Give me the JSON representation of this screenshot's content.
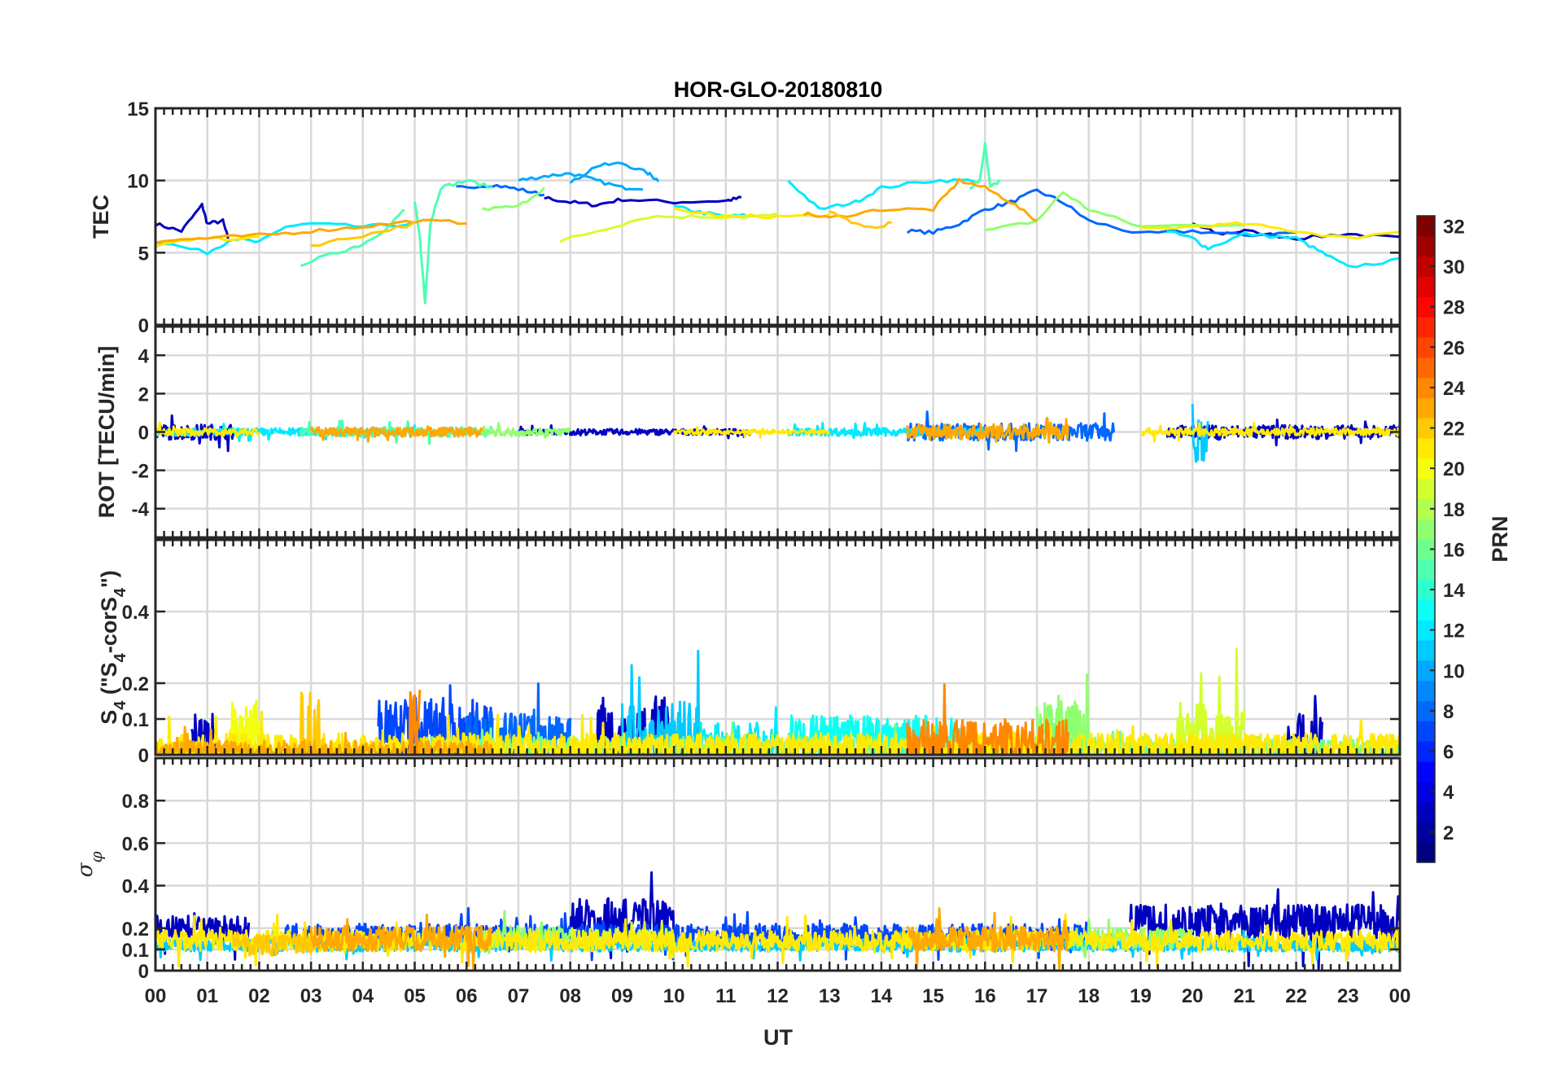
{
  "chart_data": {
    "type": "line",
    "title": "HOR-GLO-20180810",
    "xlabel": "UT",
    "xlim": [
      0,
      24
    ],
    "x_tick_labels": [
      "00",
      "01",
      "02",
      "03",
      "04",
      "05",
      "06",
      "07",
      "08",
      "09",
      "10",
      "11",
      "12",
      "13",
      "14",
      "15",
      "16",
      "17",
      "18",
      "19",
      "20",
      "21",
      "22",
      "23",
      "00"
    ],
    "colorbar": {
      "label": "PRN",
      "range": [
        1,
        32
      ],
      "tick_labels": [
        "2",
        "4",
        "6",
        "8",
        "10",
        "12",
        "14",
        "16",
        "18",
        "20",
        "22",
        "24",
        "26",
        "28",
        "30",
        "32"
      ],
      "colormap": "jet"
    },
    "panels": [
      {
        "ylabel": "TEC",
        "ylim": [
          0,
          15
        ],
        "yticks": [
          0,
          5,
          10,
          15
        ],
        "ytick_labels": [
          "0",
          "5",
          "10",
          "15"
        ],
        "series": [
          {
            "prn": 3,
            "x": [
              0,
              0.5,
              0.9,
              1.0,
              1.3,
              1.4
            ],
            "y": [
              7,
              6.5,
              8.3,
              7,
              7.2,
              6
            ]
          },
          {
            "prn": 3,
            "x": [
              7.5,
              8,
              8.5,
              9,
              10,
              11,
              11.3
            ],
            "y": [
              8.8,
              8.5,
              8.3,
              8.7,
              8.5,
              8.6,
              8.8
            ]
          },
          {
            "prn": 3,
            "x": [
              20,
              20.5,
              21,
              22,
              23,
              24
            ],
            "y": [
              7,
              6.3,
              6.5,
              6,
              6.3,
              6
            ]
          },
          {
            "prn": 8,
            "x": [
              5.8,
              6.5,
              7,
              7.5
            ],
            "y": [
              9.5,
              9.7,
              9.4,
              9
            ]
          },
          {
            "prn": 8,
            "x": [
              14.5,
              15,
              15.5,
              16,
              16.5,
              17,
              17.5,
              18,
              19,
              20,
              21,
              22
            ],
            "y": [
              6.5,
              6.4,
              7,
              8,
              8.5,
              9.3,
              8.5,
              7.2,
              6.3,
              6.5,
              6.2,
              6.4
            ]
          },
          {
            "prn": 10,
            "x": [
              7,
              7.5,
              8,
              8.5,
              9,
              9.4
            ],
            "y": [
              10,
              10.3,
              10.5,
              10,
              9.5,
              9.5
            ]
          },
          {
            "prn": 10,
            "x": [
              8,
              8.5,
              9,
              9.5,
              9.7
            ],
            "y": [
              9.8,
              11,
              11.2,
              10.5,
              10
            ]
          },
          {
            "prn": 12,
            "x": [
              0,
              1,
              1.5,
              2,
              2.5,
              3,
              4,
              5
            ],
            "y": [
              5.8,
              5,
              6,
              5.7,
              6.8,
              7,
              6.8,
              7
            ]
          },
          {
            "prn": 12,
            "x": [
              10,
              10.5,
              11,
              11.5
            ],
            "y": [
              8.2,
              7.8,
              7.5,
              7.6
            ]
          },
          {
            "prn": 12,
            "x": [
              12.2,
              12.8,
              13.5,
              14,
              15,
              15.8
            ],
            "y": [
              10,
              8,
              8.5,
              9.5,
              10,
              10
            ]
          },
          {
            "prn": 12,
            "x": [
              19.5,
              20,
              20.3,
              21,
              22,
              22.5,
              23,
              24
            ],
            "y": [
              6.5,
              6,
              5.3,
              6.3,
              6,
              5,
              4,
              4.5
            ]
          },
          {
            "prn": 15,
            "x": [
              2.8,
              3.5,
              4,
              4.5,
              4.8
            ],
            "y": [
              4.2,
              5,
              5.6,
              6.8,
              8
            ]
          },
          {
            "prn": 15,
            "x": [
              5,
              5.1,
              5.2,
              5.3,
              5.5,
              6,
              6.5
            ],
            "y": [
              8.5,
              6,
              1.5,
              7,
              9.5,
              10,
              9.5
            ]
          },
          {
            "prn": 15,
            "x": [
              15.7,
              15.9,
              16,
              16.1,
              16.3
            ],
            "y": [
              9.5,
              10,
              12.5,
              9.5,
              10
            ]
          },
          {
            "prn": 17,
            "x": [
              6.3,
              7,
              7.5
            ],
            "y": [
              8,
              8.2,
              9.5
            ]
          },
          {
            "prn": 17,
            "x": [
              16,
              17,
              17.5,
              18,
              19,
              21
            ],
            "y": [
              6.5,
              7.2,
              9.2,
              8,
              6.8,
              7
            ]
          },
          {
            "prn": 19,
            "x": [
              7.8,
              8.5,
              9.5,
              10.5,
              11.5,
              12
            ],
            "y": [
              5.8,
              6.5,
              7.5,
              7.5,
              7.5,
              7.6
            ]
          },
          {
            "prn": 21,
            "x": [
              0,
              1,
              2
            ],
            "y": [
              5.5,
              6,
              6
            ]
          },
          {
            "prn": 21,
            "x": [
              10,
              11,
              12,
              13
            ],
            "y": [
              8,
              7.5,
              7.5,
              7.6
            ]
          },
          {
            "prn": 21,
            "x": [
              19,
              20,
              21,
              22,
              23,
              24
            ],
            "y": [
              6.6,
              6.8,
              7,
              6.5,
              6,
              6.5
            ]
          },
          {
            "prn": 23,
            "x": [
              0,
              1,
              2,
              3,
              4,
              5,
              6
            ],
            "y": [
              5.8,
              6,
              6.2,
              6.5,
              6.8,
              7.2,
              7.1
            ]
          },
          {
            "prn": 23,
            "x": [
              12.5,
              13,
              14,
              15,
              15.5,
              16,
              16.5,
              17
            ],
            "y": [
              7.7,
              7.4,
              8,
              8,
              10,
              9.5,
              8.5,
              7.2
            ]
          },
          {
            "prn": 22,
            "x": [
              3,
              4,
              5
            ],
            "y": [
              5.5,
              6.2,
              7
            ]
          },
          {
            "prn": 22,
            "x": [
              13,
              13.5,
              14,
              14.2
            ],
            "y": [
              7.8,
              7,
              6.8,
              7.2
            ]
          }
        ]
      },
      {
        "ylabel": "ROT [TECU/min]",
        "ylim": [
          -5.5,
          5.5
        ],
        "yticks": [
          -4,
          -2,
          0,
          2,
          4
        ],
        "ytick_labels": [
          "-4",
          "-2",
          "0",
          "2",
          "4"
        ],
        "series": [
          {
            "prn": 3,
            "t": [
              0,
              1.5
            ],
            "base": 0,
            "amp": 0.4
          },
          {
            "prn": 3,
            "t": [
              7,
              11.5
            ],
            "base": 0,
            "amp": 0.15
          },
          {
            "prn": 3,
            "t": [
              19.5,
              24
            ],
            "base": 0,
            "amp": 0.35
          },
          {
            "prn": 8,
            "t": [
              14.5,
              18.5
            ],
            "base": 0,
            "amp": 0.45
          },
          {
            "prn": 12,
            "t": [
              0,
              5
            ],
            "base": 0,
            "amp": 0.2
          },
          {
            "prn": 12,
            "t": [
              12.2,
              16
            ],
            "base": 0,
            "amp": 0.2
          },
          {
            "prn": 11,
            "t": [
              20,
              20.3
            ],
            "base": -0.5,
            "amp": 1.2
          },
          {
            "prn": 15,
            "t": [
              2.8,
              6.5
            ],
            "base": 0,
            "amp": 0.25
          },
          {
            "prn": 17,
            "t": [
              6.3,
              8
            ],
            "base": 0,
            "amp": 0.2
          },
          {
            "prn": 21,
            "t": [
              0,
              2
            ],
            "base": 0,
            "amp": 0.2
          },
          {
            "prn": 21,
            "t": [
              10,
              13
            ],
            "base": 0,
            "amp": 0.12
          },
          {
            "prn": 21,
            "t": [
              19,
              24
            ],
            "base": 0,
            "amp": 0.2
          },
          {
            "prn": 23,
            "t": [
              3,
              6.3
            ],
            "base": 0,
            "amp": 0.25
          },
          {
            "prn": 23,
            "t": [
              14.5,
              17.6
            ],
            "base": 0,
            "amp": 0.4
          }
        ]
      },
      {
        "ylabel": "S4 (\"S4-corS4\")",
        "ylim": [
          0,
          0.6
        ],
        "yticks": [
          0,
          0.1,
          0.2,
          0.4
        ],
        "ytick_labels": [
          "0",
          "0.1",
          "0.2",
          "0.4"
        ],
        "series": [
          {
            "prn": 3,
            "t": [
              0.7,
              1.2
            ],
            "base": 0.05,
            "amp": 0.07
          },
          {
            "prn": 3,
            "t": [
              8.5,
              9.9
            ],
            "base": 0.05,
            "amp": 0.12
          },
          {
            "prn": 3,
            "t": [
              21.8,
              22.5
            ],
            "base": 0.04,
            "amp": 0.08
          },
          {
            "prn": 7,
            "t": [
              4.3,
              6.5
            ],
            "base": 0.07,
            "amp": 0.09
          },
          {
            "prn": 8,
            "t": [
              6,
              8
            ],
            "base": 0.05,
            "amp": 0.07
          },
          {
            "prn": 11,
            "t": [
              9,
              10.5
            ],
            "base": 0.05,
            "amp": 0.1
          },
          {
            "prn": 12,
            "t": [
              10.5,
              12
            ],
            "base": 0.04,
            "amp": 0.05
          },
          {
            "prn": 13,
            "t": [
              12.2,
              15.5
            ],
            "base": 0.05,
            "amp": 0.06
          },
          {
            "prn": 17,
            "t": [
              17,
              18
            ],
            "base": 0.06,
            "amp": 0.09
          },
          {
            "prn": 16,
            "t": [
              5,
              24
            ],
            "base": 0.02,
            "amp": 0.03
          },
          {
            "prn": 19,
            "t": [
              19.7,
              21
            ],
            "base": 0.05,
            "amp": 0.1
          },
          {
            "prn": 20,
            "t": [
              1.4,
              2
            ],
            "base": 0.07,
            "amp": 0.1
          },
          {
            "prn": 21,
            "t": [
              0,
              24
            ],
            "base": 0.02,
            "amp": 0.04
          },
          {
            "prn": 22,
            "t": [
              2.8,
              3.3
            ],
            "base": 0.03,
            "amp": 0.15
          },
          {
            "prn": 23,
            "t": [
              0,
              6.5
            ],
            "base": 0.01,
            "amp": 0.03
          },
          {
            "prn": 24,
            "t": [
              14.5,
              17.6
            ],
            "base": 0.03,
            "amp": 0.07
          },
          {
            "prn": 24,
            "t": [
              4.9,
              5.1
            ],
            "base": 0.05,
            "amp": 0.15
          }
        ]
      },
      {
        "ylabel": "σφ",
        "ylim": [
          0,
          1
        ],
        "yticks": [
          0,
          0.1,
          0.2,
          0.4,
          0.6,
          0.8
        ],
        "ytick_labels": [
          "0",
          "0.1",
          "0.2",
          "0.4",
          "0.6",
          "0.8"
        ],
        "series": [
          {
            "prn": 3,
            "t": [
              0,
              1.8
            ],
            "base": 0.2,
            "amp": 0.06
          },
          {
            "prn": 3,
            "t": [
              8,
              10
            ],
            "base": 0.24,
            "amp": 0.1
          },
          {
            "prn": 3,
            "t": [
              18.8,
              24
            ],
            "base": 0.22,
            "amp": 0.09
          },
          {
            "prn": 7,
            "t": [
              2.5,
              18
            ],
            "base": 0.17,
            "amp": 0.05
          },
          {
            "prn": 11,
            "t": [
              0,
              24
            ],
            "base": 0.12,
            "amp": 0.03
          },
          {
            "prn": 17,
            "t": [
              6.3,
              8
            ],
            "base": 0.16,
            "amp": 0.05
          },
          {
            "prn": 17,
            "t": [
              17.6,
              20
            ],
            "base": 0.15,
            "amp": 0.05
          },
          {
            "prn": 19,
            "t": [
              8,
              10
            ],
            "base": 0.15,
            "amp": 0.05
          },
          {
            "prn": 21,
            "t": [
              0,
              24
            ],
            "base": 0.14,
            "amp": 0.05
          },
          {
            "prn": 23,
            "t": [
              3,
              6.5
            ],
            "base": 0.15,
            "amp": 0.06
          },
          {
            "prn": 23,
            "t": [
              14.5,
              17.6
            ],
            "base": 0.15,
            "amp": 0.06
          },
          {
            "prn": 22,
            "t": [
              1.5,
              3
            ],
            "base": 0.12,
            "amp": 0.05
          }
        ]
      }
    ]
  }
}
